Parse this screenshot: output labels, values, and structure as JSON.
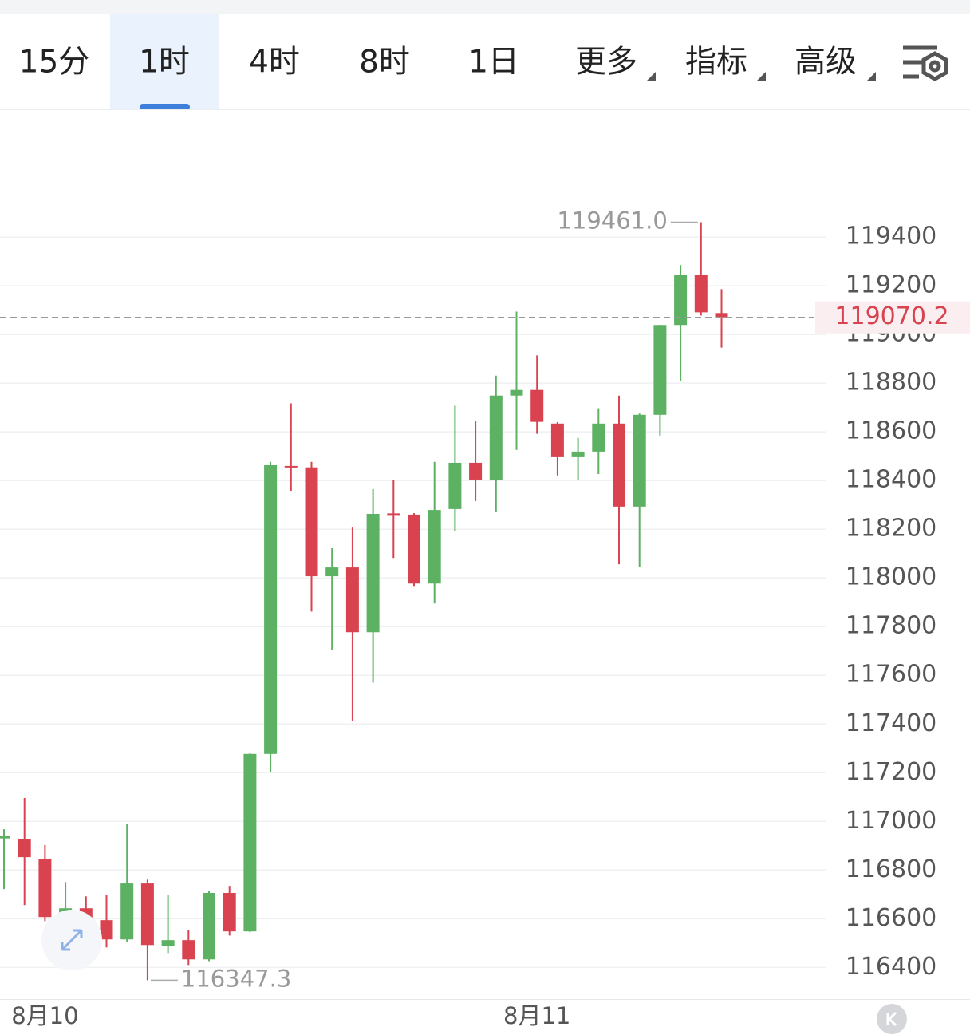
{
  "tabs": [
    "15分",
    "1时",
    "4时",
    "8时",
    "1日",
    "更多",
    "指标",
    "高级"
  ],
  "active_tab": 1,
  "chart_data": {
    "type": "candlestick",
    "categories": [
      null,
      null,
      "8月10",
      null,
      null,
      null,
      null,
      null,
      null,
      null,
      null,
      null,
      null,
      null,
      null,
      null,
      null,
      null,
      null,
      null,
      null,
      null,
      null,
      null,
      null,
      null,
      "8月11",
      null,
      null,
      null,
      null,
      null,
      null,
      null,
      null,
      null
    ],
    "open": [
      116930,
      116926,
      116847,
      116607,
      116643,
      116594,
      116515,
      116745,
      116489,
      116512,
      116433,
      116706,
      116548,
      117277,
      118460,
      118454,
      118007,
      118043,
      117777,
      118265,
      118260,
      117977,
      118283,
      118473,
      118404,
      118749,
      118772,
      118634,
      118496,
      118519,
      118634,
      118293,
      118670,
      119039,
      119246,
      119088
    ],
    "high": [
      116968,
      117096,
      116903,
      116751,
      116692,
      116696,
      116991,
      116761,
      116696,
      116555,
      116715,
      116735,
      117280,
      118477,
      118717,
      118477,
      118122,
      118207,
      118365,
      118404,
      118266,
      118477,
      118707,
      118644,
      118831,
      119094,
      118914,
      118640,
      118575,
      118697,
      118749,
      118675,
      119040,
      119285,
      119461.0,
      119186
    ],
    "low": [
      116722,
      116656,
      116590,
      116590,
      116482,
      116482,
      116505,
      116347.3,
      116459,
      116410,
      116426,
      116531,
      116545,
      117202,
      118358,
      117862,
      117704,
      117412,
      117570,
      118082,
      117967,
      117895,
      118191,
      118316,
      118273,
      118526,
      118592,
      118421,
      118404,
      118427,
      118056,
      118046,
      118585,
      118808,
      119078,
      118946
    ],
    "close": [
      116940,
      116853,
      116607,
      116643,
      116597,
      116515,
      116745,
      116492,
      116512,
      116433,
      116706,
      116548,
      117277,
      118463,
      118457,
      118007,
      118043,
      117777,
      118263,
      118260,
      117977,
      118279,
      118473,
      118404,
      118749,
      118772,
      118641,
      118496,
      118519,
      118634,
      118293,
      118670,
      119039,
      119246,
      119091,
      119070.2
    ],
    "up_color": "#5cb162",
    "down_color": "#d8434f",
    "ylim": [
      116270,
      119915
    ],
    "yticks": [
      116400,
      116600,
      116800,
      117000,
      117200,
      117400,
      117600,
      117800,
      118000,
      118200,
      118400,
      118600,
      118800,
      119000,
      119200,
      119400
    ],
    "grid": true,
    "annotations": [
      "119461.0",
      "116347.3"
    ]
  }
}
